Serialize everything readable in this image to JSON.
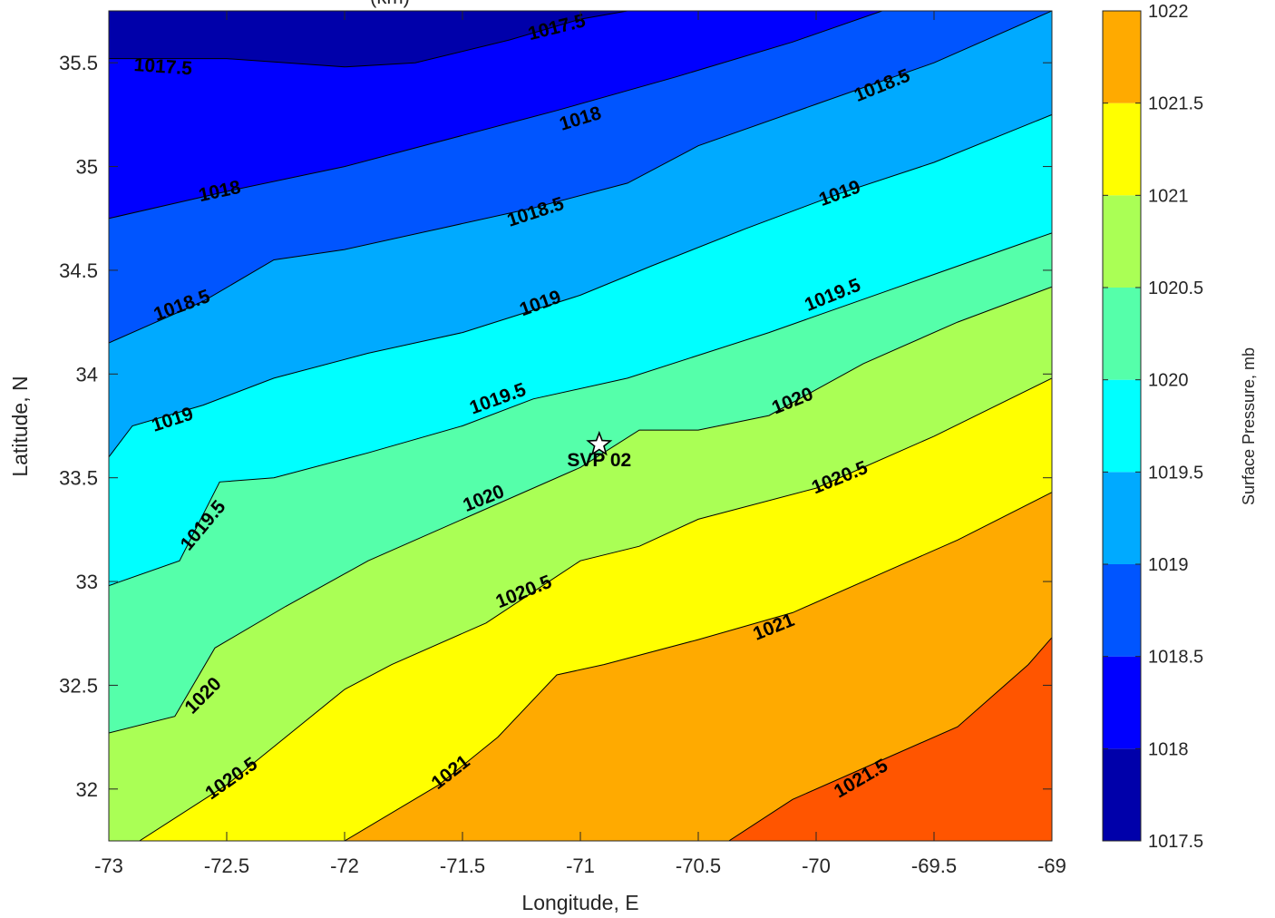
{
  "chart_data": {
    "type": "contour",
    "title": "(km)",
    "xlabel": "Longitude, E",
    "ylabel": "Latitude, N",
    "colorbar_label": "Surface Pressure, mb",
    "xlim": [
      -73,
      -69
    ],
    "ylim": [
      31.75,
      35.75
    ],
    "xticks": [
      "-73",
      "-72.5",
      "-72",
      "-71.5",
      "-71",
      "-70.5",
      "-70",
      "-69.5",
      "-69"
    ],
    "yticks": [
      "32",
      "32.5",
      "33",
      "33.5",
      "34",
      "34.5",
      "35",
      "35.5"
    ],
    "colorbar_ticks": [
      "1017.5",
      "1018",
      "1018.5",
      "1019",
      "1019.5",
      "1020",
      "1020.5",
      "1021",
      "1021.5",
      "1022"
    ],
    "colorbar_range": [
      1017.5,
      1022
    ],
    "levels": [
      1017.5,
      1018,
      1018.5,
      1019,
      1019.5,
      1020,
      1020.5,
      1021,
      1021.5,
      1022
    ],
    "level_colors": [
      "#0000aa",
      "#0000ff",
      "#0055ff",
      "#00aaff",
      "#00ffff",
      "#55ffaa",
      "#aaff55",
      "#ffff00",
      "#ffaa00",
      "#ff5500"
    ],
    "contours": [
      {
        "level": 1017.5,
        "label": "1017.5",
        "points": [
          [
            -73,
            35.52
          ],
          [
            -72.5,
            35.52
          ],
          [
            -72,
            35.48
          ],
          [
            -71.7,
            35.5
          ],
          [
            -71.3,
            35.61
          ],
          [
            -71.0,
            35.71
          ],
          [
            -70.8,
            35.75
          ]
        ]
      },
      {
        "level": 1018,
        "label": "1018",
        "points": [
          [
            -73,
            34.75
          ],
          [
            -72.5,
            34.88
          ],
          [
            -72,
            35.0
          ],
          [
            -71.5,
            35.15
          ],
          [
            -71.1,
            35.27
          ],
          [
            -70.6,
            35.43
          ],
          [
            -70.1,
            35.6
          ],
          [
            -69.72,
            35.75
          ]
        ]
      },
      {
        "level": 1018.5,
        "label": "1018.5",
        "points": [
          [
            -73,
            34.15
          ],
          [
            -72.6,
            34.35
          ],
          [
            -72.3,
            34.55
          ],
          [
            -72,
            34.6
          ],
          [
            -71.6,
            34.7
          ],
          [
            -71.2,
            34.8
          ],
          [
            -70.8,
            34.92
          ],
          [
            -70.5,
            35.1
          ],
          [
            -70.0,
            35.3
          ],
          [
            -69.5,
            35.5
          ],
          [
            -69,
            35.75
          ]
        ]
      },
      {
        "level": 1019,
        "label": "1019",
        "points": [
          [
            -73,
            33.6
          ],
          [
            -72.9,
            33.75
          ],
          [
            -72.6,
            33.85
          ],
          [
            -72.3,
            33.98
          ],
          [
            -71.9,
            34.1
          ],
          [
            -71.5,
            34.2
          ],
          [
            -71.0,
            34.38
          ],
          [
            -70.7,
            34.52
          ],
          [
            -70.3,
            34.7
          ],
          [
            -69.9,
            34.87
          ],
          [
            -69.5,
            35.02
          ],
          [
            -69,
            35.25
          ]
        ]
      },
      {
        "level": 1019.5,
        "label": "1019.5",
        "points": [
          [
            -73,
            32.98
          ],
          [
            -72.7,
            33.1
          ],
          [
            -72.53,
            33.48
          ],
          [
            -72.3,
            33.5
          ],
          [
            -71.9,
            33.62
          ],
          [
            -71.5,
            33.75
          ],
          [
            -71.2,
            33.88
          ],
          [
            -70.8,
            33.98
          ],
          [
            -70.2,
            34.2
          ],
          [
            -69.7,
            34.4
          ],
          [
            -69,
            34.68
          ]
        ]
      },
      {
        "level": 1020,
        "label": "1020",
        "points": [
          [
            -73,
            32.27
          ],
          [
            -72.72,
            32.35
          ],
          [
            -72.55,
            32.68
          ],
          [
            -72.25,
            32.88
          ],
          [
            -71.9,
            33.1
          ],
          [
            -71.4,
            33.35
          ],
          [
            -71.0,
            33.55
          ],
          [
            -70.75,
            33.73
          ],
          [
            -70.5,
            33.73
          ],
          [
            -70.2,
            33.8
          ],
          [
            -69.8,
            34.05
          ],
          [
            -69.4,
            34.25
          ],
          [
            -69,
            34.42
          ]
        ]
      },
      {
        "level": 1020.5,
        "label": "1020.5",
        "points": [
          [
            -72.87,
            31.75
          ],
          [
            -72.5,
            32.02
          ],
          [
            -72.0,
            32.48
          ],
          [
            -71.8,
            32.6
          ],
          [
            -71.4,
            32.8
          ],
          [
            -71.0,
            33.1
          ],
          [
            -70.75,
            33.17
          ],
          [
            -70.5,
            33.3
          ],
          [
            -70.0,
            33.45
          ],
          [
            -69.5,
            33.7
          ],
          [
            -69,
            33.98
          ]
        ]
      },
      {
        "level": 1021,
        "label": "1021",
        "points": [
          [
            -72.0,
            31.75
          ],
          [
            -71.6,
            32.02
          ],
          [
            -71.35,
            32.25
          ],
          [
            -71.1,
            32.55
          ],
          [
            -70.9,
            32.6
          ],
          [
            -70.5,
            32.72
          ],
          [
            -70.1,
            32.85
          ],
          [
            -69.7,
            33.05
          ],
          [
            -69.4,
            33.2
          ],
          [
            -69,
            33.43
          ]
        ]
      },
      {
        "level": 1021.5,
        "label": "1021.5",
        "points": [
          [
            -70.37,
            31.75
          ],
          [
            -70.1,
            31.95
          ],
          [
            -69.7,
            32.15
          ],
          [
            -69.4,
            32.3
          ],
          [
            -69.1,
            32.6
          ],
          [
            -69,
            32.73
          ]
        ]
      }
    ],
    "contour_labels": [
      {
        "text": "1017.5",
        "x": -72.77,
        "y": 35.48,
        "angle": 4
      },
      {
        "text": "1017.5",
        "x": -71.1,
        "y": 35.67,
        "angle": -14
      },
      {
        "text": "1018",
        "x": -72.53,
        "y": 34.88,
        "angle": -12
      },
      {
        "text": "1018",
        "x": -71.0,
        "y": 35.23,
        "angle": -17
      },
      {
        "text": "1018.5",
        "x": -72.69,
        "y": 34.33,
        "angle": -20
      },
      {
        "text": "1018.5",
        "x": -71.19,
        "y": 34.78,
        "angle": -18
      },
      {
        "text": "1018.5",
        "x": -69.72,
        "y": 35.39,
        "angle": -22
      },
      {
        "text": "1019",
        "x": -72.73,
        "y": 33.78,
        "angle": -18
      },
      {
        "text": "1019",
        "x": -71.17,
        "y": 34.34,
        "angle": -20
      },
      {
        "text": "1019",
        "x": -69.9,
        "y": 34.87,
        "angle": -20
      },
      {
        "text": "1019.5",
        "x": -72.6,
        "y": 33.27,
        "angle": -50
      },
      {
        "text": "1019.5",
        "x": -71.35,
        "y": 33.88,
        "angle": -20
      },
      {
        "text": "1019.5",
        "x": -69.93,
        "y": 34.38,
        "angle": -22
      },
      {
        "text": "1020",
        "x": -72.6,
        "y": 32.45,
        "angle": -45
      },
      {
        "text": "1020",
        "x": -71.41,
        "y": 33.4,
        "angle": -22
      },
      {
        "text": "1020",
        "x": -70.1,
        "y": 33.87,
        "angle": -22
      },
      {
        "text": "1020.5",
        "x": -72.48,
        "y": 32.05,
        "angle": -35
      },
      {
        "text": "1020.5",
        "x": -71.24,
        "y": 32.95,
        "angle": -22
      },
      {
        "text": "1020.5",
        "x": -69.9,
        "y": 33.5,
        "angle": -22
      },
      {
        "text": "1021",
        "x": -71.55,
        "y": 32.08,
        "angle": -38
      },
      {
        "text": "1021",
        "x": -70.18,
        "y": 32.78,
        "angle": -22
      },
      {
        "text": "1021.5",
        "x": -69.81,
        "y": 32.05,
        "angle": -30
      }
    ],
    "annotations": [
      {
        "type": "star-marker",
        "label": "SVP 02",
        "x": -70.92,
        "y": 33.66
      }
    ]
  }
}
